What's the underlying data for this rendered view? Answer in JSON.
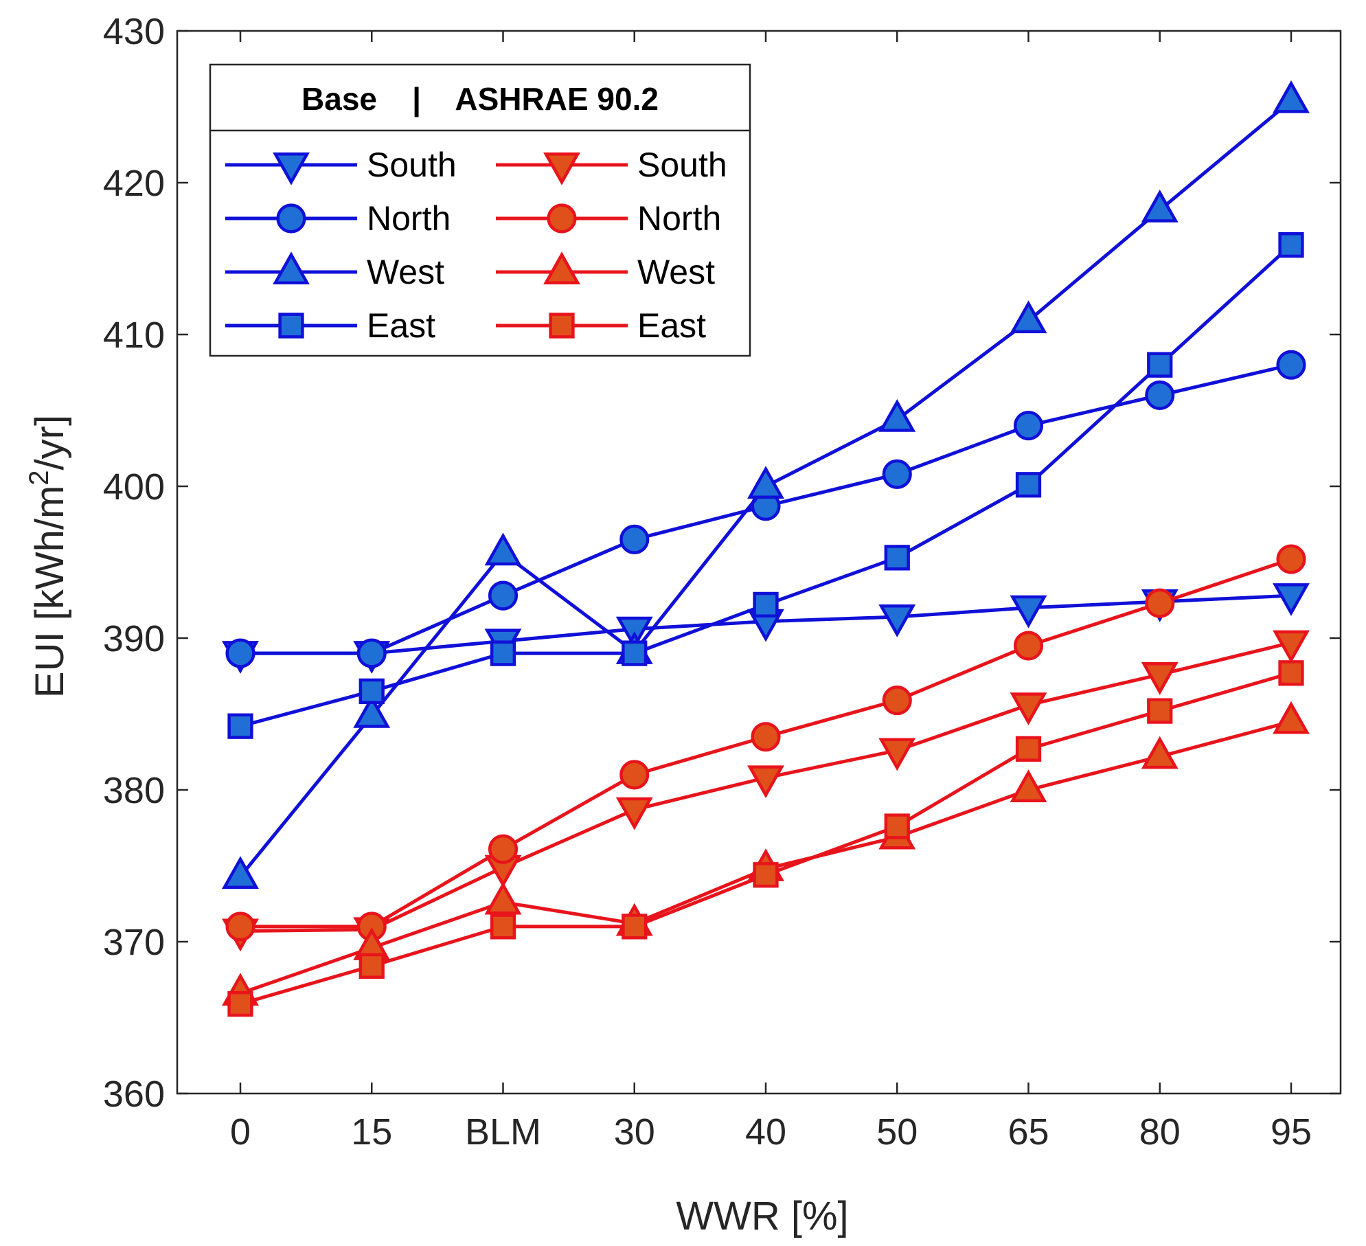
{
  "chart_data": {
    "type": "line",
    "categories": [
      "0",
      "15",
      "BLM",
      "30",
      "40",
      "50",
      "65",
      "80",
      "95"
    ],
    "xlabel": "WWR [%]",
    "ylabel": "EUI [kWh/m²/yr]",
    "ylabel_parts": {
      "main": "EUI [kWh/m",
      "sup": "2",
      "tail": "/yr]"
    },
    "ylim": [
      360,
      430
    ],
    "yticks": [
      "360",
      "370",
      "380",
      "390",
      "400",
      "410",
      "420",
      "430"
    ],
    "grid": false,
    "legend": {
      "title": "Base    |    ASHRAE 90.2",
      "placement": "top-left",
      "columns": [
        "Base",
        "ASHRAE 90.2"
      ]
    },
    "colors": {
      "base_line": "#1010d8",
      "base_fill": "#1f6fd6",
      "ashrae_line": "#e8141c",
      "ashrae_fill": "#e0501a",
      "axis": "#262626"
    },
    "series": [
      {
        "name": "South",
        "group": "Base",
        "marker": "triangle-down",
        "values": [
          389,
          389,
          389.8,
          390.6,
          391.1,
          391.4,
          392,
          392.4,
          392.8
        ]
      },
      {
        "name": "North",
        "group": "Base",
        "marker": "circle",
        "values": [
          389,
          389,
          392.8,
          396.5,
          398.7,
          400.8,
          404,
          406,
          408
        ]
      },
      {
        "name": "West",
        "group": "Base",
        "marker": "triangle-up",
        "values": [
          374.3,
          384.9,
          395.6,
          389.1,
          400,
          404.4,
          410.9,
          418.2,
          425.4
        ]
      },
      {
        "name": "East",
        "group": "Base",
        "marker": "square",
        "values": [
          384.2,
          386.5,
          389,
          389,
          392.2,
          395.3,
          400.1,
          408,
          415.9
        ]
      },
      {
        "name": "South",
        "group": "ASHRAE 90.2",
        "marker": "triangle-down",
        "values": [
          370.7,
          370.8,
          374.9,
          378.7,
          380.8,
          382.6,
          385.6,
          387.6,
          389.7
        ]
      },
      {
        "name": "North",
        "group": "ASHRAE 90.2",
        "marker": "circle",
        "values": [
          371,
          371,
          376.1,
          381,
          383.5,
          385.9,
          389.5,
          392.3,
          395.2
        ]
      },
      {
        "name": "West",
        "group": "ASHRAE 90.2",
        "marker": "triangle-up",
        "values": [
          366.6,
          369.6,
          372.6,
          371.2,
          374.8,
          376.9,
          380,
          382.2,
          384.5
        ]
      },
      {
        "name": "East",
        "group": "ASHRAE 90.2",
        "marker": "square",
        "values": [
          365.9,
          368.4,
          371,
          371,
          374.4,
          377.6,
          382.7,
          385.2,
          387.7
        ]
      }
    ]
  }
}
